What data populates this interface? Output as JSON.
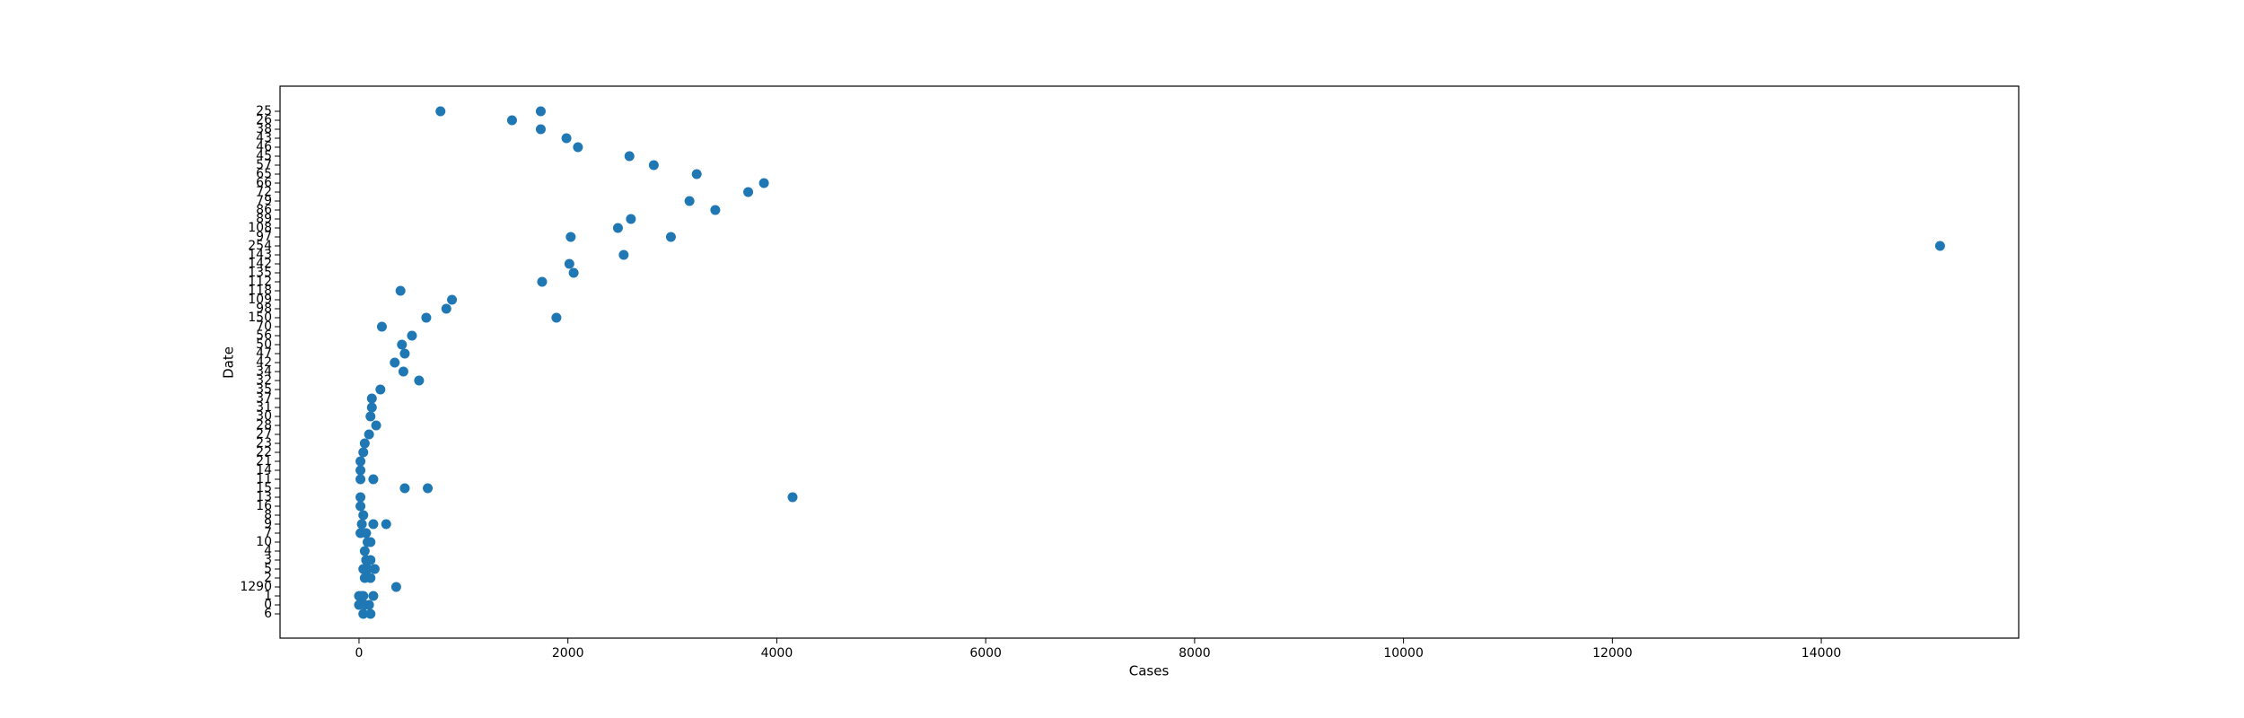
{
  "chart_data": {
    "type": "scatter",
    "x_label": "Cases",
    "y_label": "Date",
    "color": "#1f77b4",
    "categories": [
      "6",
      "0",
      "1",
      "1290",
      "2",
      "5",
      "3",
      "4",
      "10",
      "7",
      "9",
      "8",
      "16",
      "13",
      "15",
      "11",
      "14",
      "21",
      "22",
      "23",
      "27",
      "28",
      "30",
      "31",
      "37",
      "35",
      "32",
      "34",
      "42",
      "47",
      "50",
      "56",
      "70",
      "150",
      "98",
      "109",
      "118",
      "112",
      "135",
      "142",
      "143",
      "254",
      "97",
      "108",
      "89",
      "86",
      "79",
      "72",
      "66",
      "65",
      "57",
      "45",
      "46",
      "43",
      "38",
      "26",
      "25"
    ],
    "x": [
      780,
      1740,
      1465,
      1740,
      1986,
      2096,
      2589,
      2822,
      3233,
      3877,
      3726,
      3164,
      3411,
      2603,
      2479,
      2027,
      2986,
      15137,
      2534,
      2014,
      2055,
      1753,
      397,
      890,
      836,
      644,
      1890,
      219,
      507,
      411,
      438,
      342,
      425,
      575,
      205,
      123,
      123,
      110,
      164,
      96,
      55,
      41,
      14,
      14,
      14,
      137,
      438,
      658,
      14,
      4151,
      14,
      41,
      27,
      137,
      260,
      14,
      68,
      110,
      82,
      55,
      68,
      110,
      41,
      150,
      82,
      55,
      110,
      356,
      0,
      41,
      137,
      27,
      0,
      96,
      55,
      41,
      110
    ],
    "y": [
      "25",
      "25",
      "26",
      "38",
      "43",
      "46",
      "45",
      "57",
      "65",
      "66",
      "72",
      "79",
      "86",
      "89",
      "108",
      "97",
      "97",
      "254",
      "143",
      "142",
      "135",
      "112",
      "118",
      "109",
      "98",
      "150",
      "150",
      "70",
      "56",
      "50",
      "47",
      "42",
      "34",
      "32",
      "35",
      "37",
      "31",
      "30",
      "28",
      "27",
      "23",
      "22",
      "21",
      "14",
      "11",
      "11",
      "15",
      "15",
      "13",
      "13",
      "16",
      "8",
      "9",
      "9",
      "9",
      "7",
      "7",
      "10",
      "10",
      "4",
      "3",
      "3",
      "5",
      "5",
      "5",
      "2",
      "2",
      "1290",
      "1",
      "1",
      "1",
      "1",
      "0",
      "0",
      "0",
      "6",
      "6"
    ],
    "xlim": [
      -756,
      15890
    ],
    "xticks": [
      0,
      2000,
      4000,
      6000,
      8000,
      10000,
      12000,
      14000
    ],
    "ylim": [
      -2.7,
      58.8
    ]
  }
}
